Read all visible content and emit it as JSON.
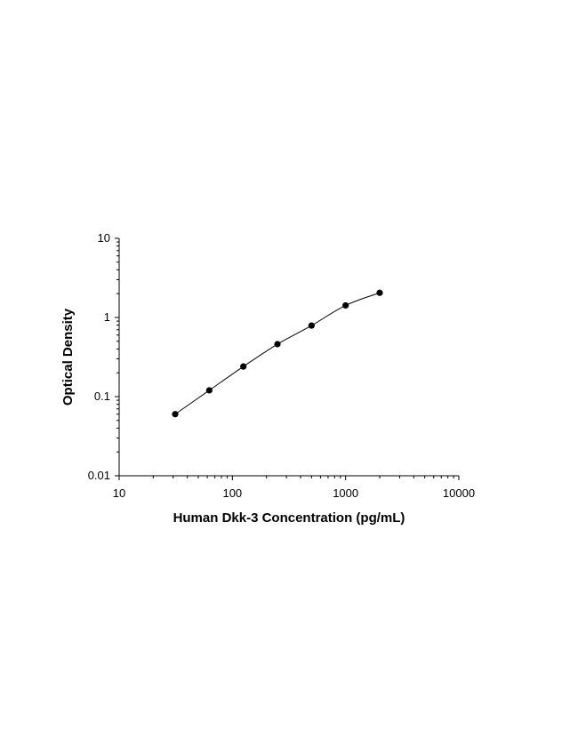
{
  "chart_data": {
    "type": "scatter",
    "title": "",
    "xlabel": "Human Dkk-3 Concentration (pg/mL)",
    "ylabel": "Optical Density",
    "x_scale": "log",
    "y_scale": "log",
    "xlim": [
      10,
      10000
    ],
    "ylim": [
      0.01,
      10
    ],
    "x_ticks": [
      "10",
      "100",
      "1000",
      "10000"
    ],
    "y_ticks": [
      "0.01",
      "0.1",
      "1",
      "10"
    ],
    "grid": false,
    "legend": "none",
    "series": [
      {
        "x": [
          31.25,
          62.5,
          125,
          250,
          500,
          1000,
          2000
        ],
        "y": [
          0.06,
          0.12,
          0.24,
          0.46,
          0.79,
          1.42,
          2.05
        ]
      }
    ],
    "colors": {
      "marker": "#000000",
      "line": "#000000",
      "axis": "#000000"
    }
  }
}
